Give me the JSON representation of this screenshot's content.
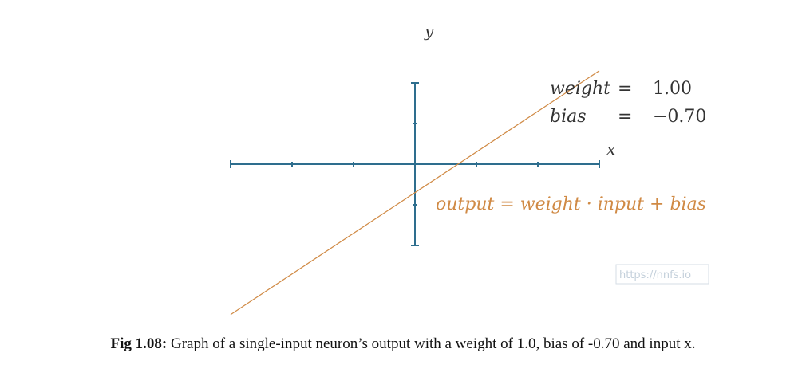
{
  "chart_data": {
    "type": "line",
    "axes": {
      "x_label": "x",
      "y_label": "y",
      "xlim": [
        -3,
        3
      ],
      "ylim": [
        -2,
        2
      ],
      "x_ticks": [
        -3,
        -2,
        -1,
        1,
        2,
        3
      ],
      "y_ticks": [
        -2,
        -1,
        1,
        2
      ],
      "grid": false
    },
    "series": [
      {
        "x": [
          -3,
          3
        ],
        "y": [
          -3.7,
          2.3
        ],
        "color": "#d08a45"
      }
    ],
    "params": {
      "weight_name": "weight",
      "weight_eq": "=",
      "weight_value": "1.00",
      "bias_name": "bias",
      "bias_eq": "=",
      "bias_value": "−0.70"
    },
    "formula": "output = weight · input + bias",
    "axis_color": "#2e6e8e"
  },
  "watermark": "https://nnfs.io",
  "caption": {
    "label": "Fig 1.08:",
    "text": " Graph of a single-input neuron’s output with a weight of 1.0, bias of -0.70 and input x."
  }
}
